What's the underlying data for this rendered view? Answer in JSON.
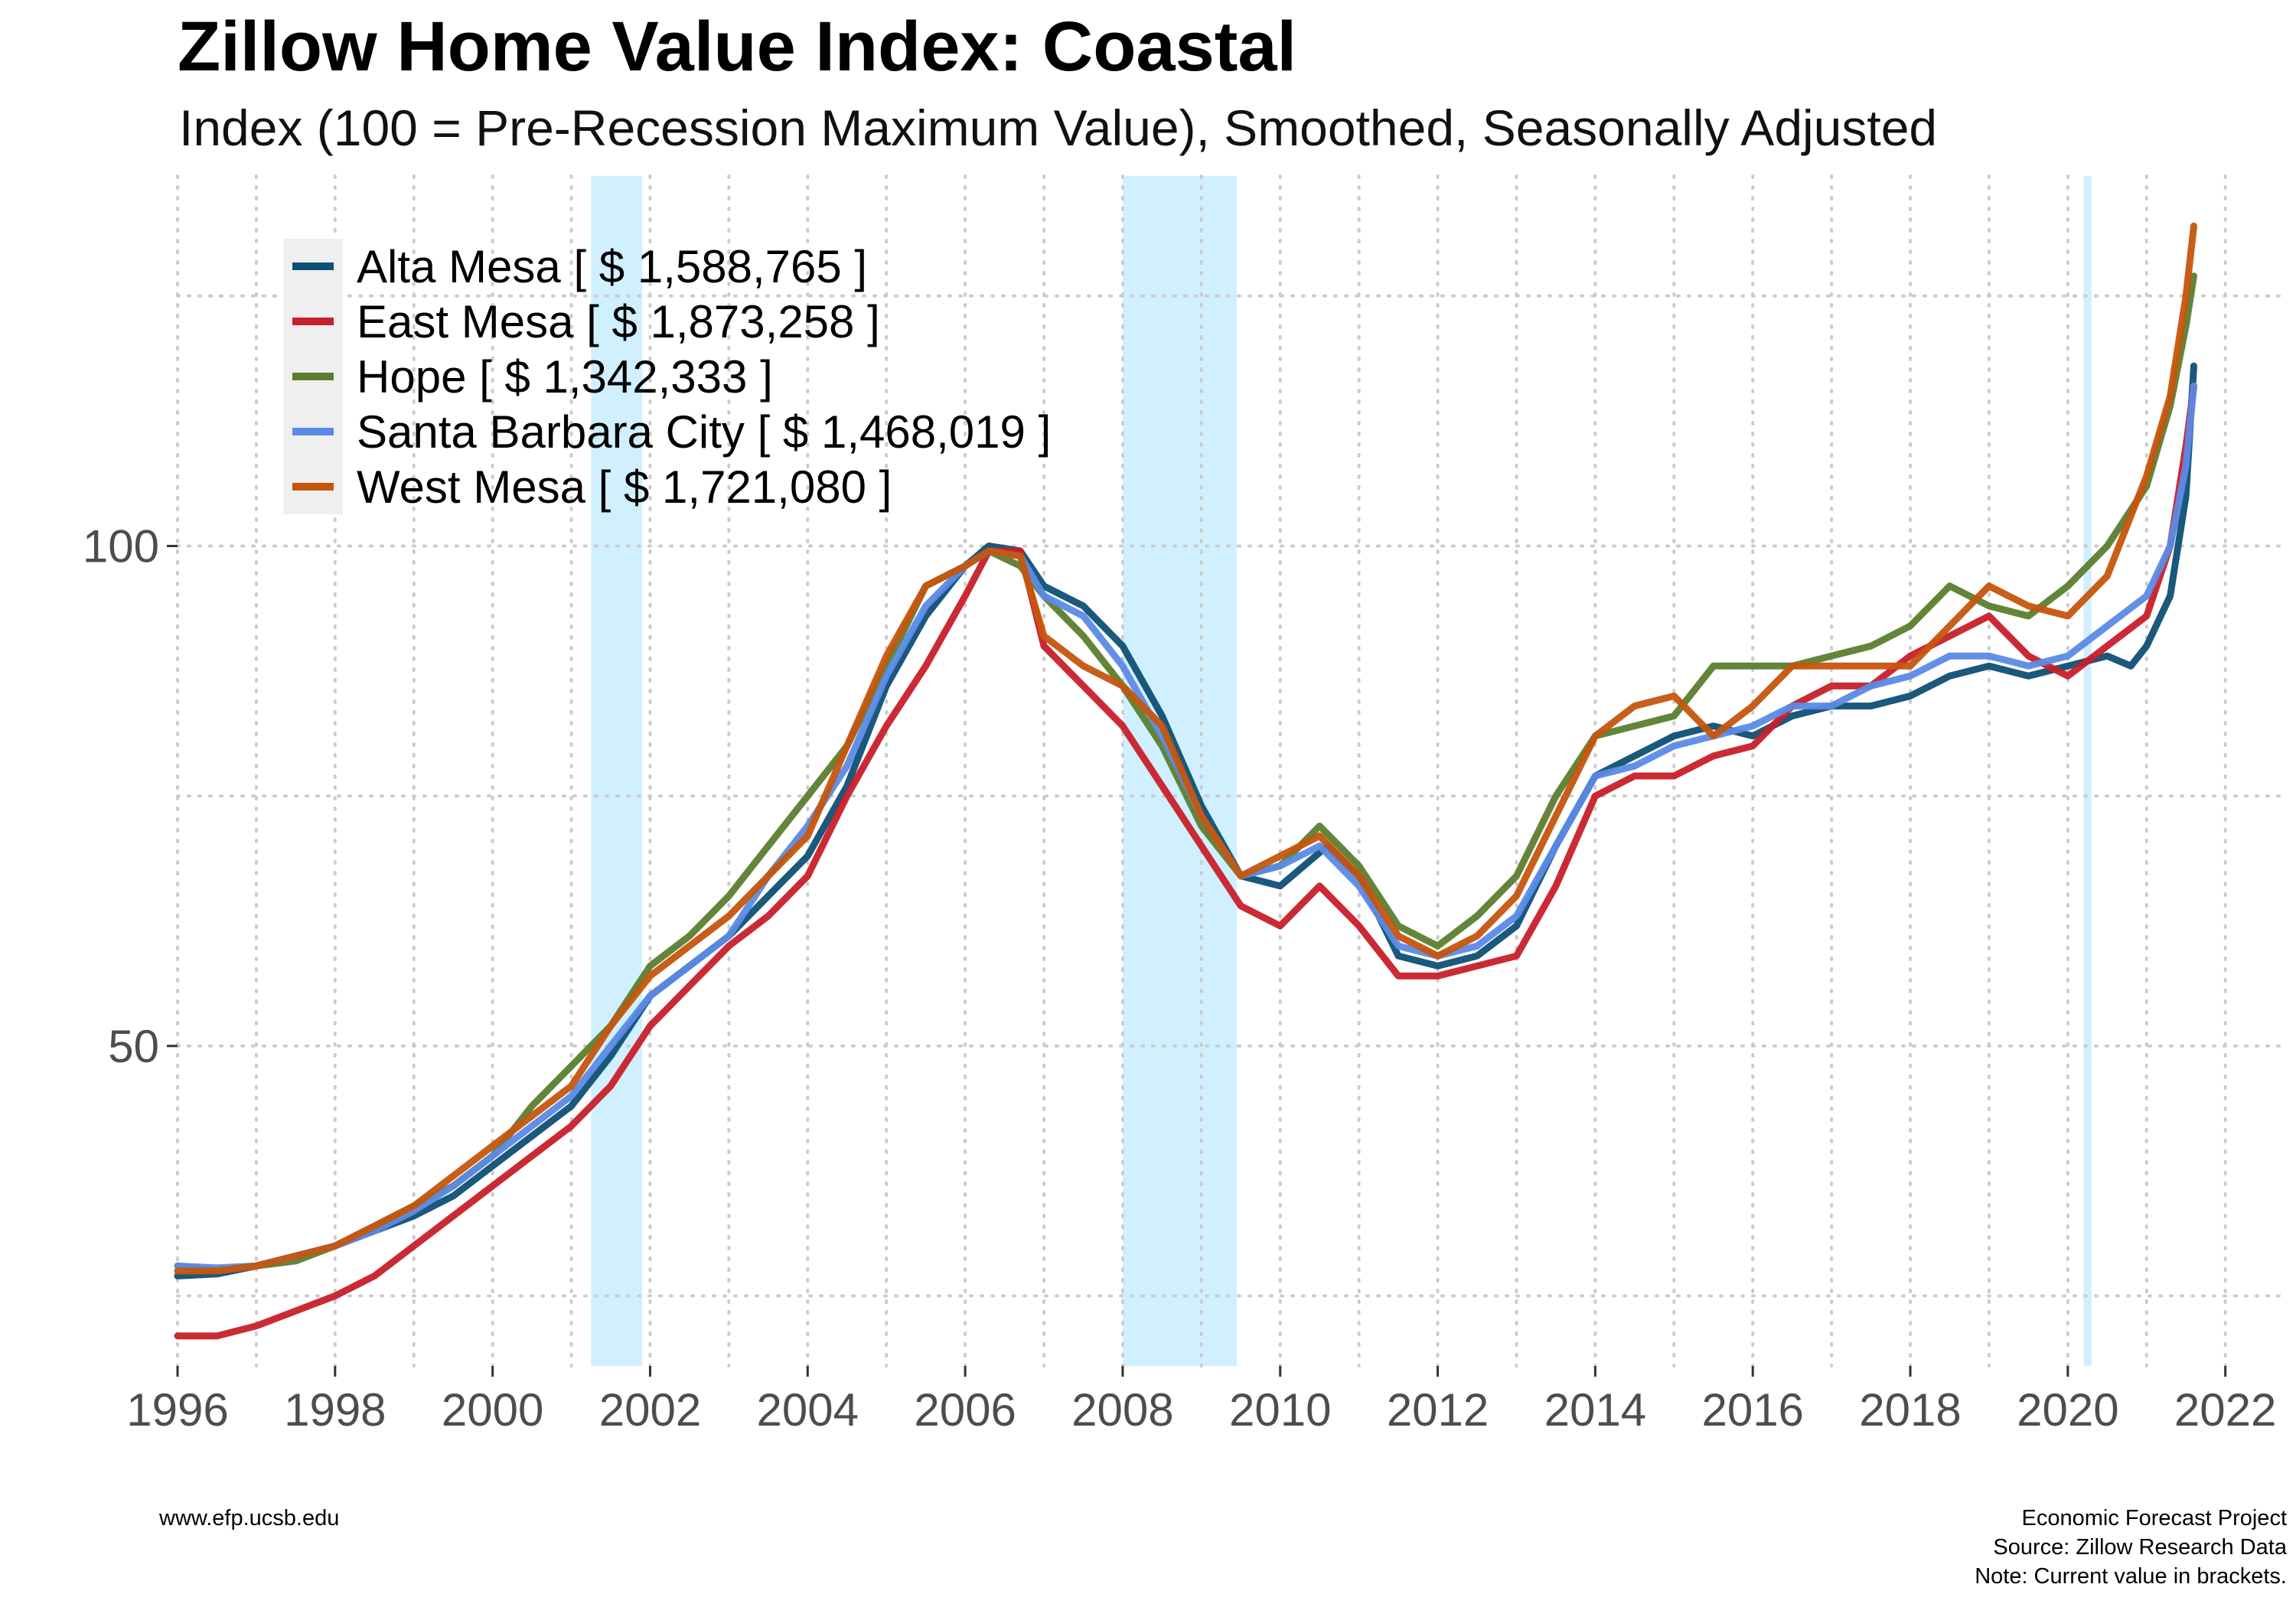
{
  "chart_data": {
    "type": "line",
    "title": "Zillow Home Value Index: Coastal",
    "subtitle": "Index (100 = Pre-Recession Maximum Value), Smoothed, Seasonally Adjusted",
    "xlim": [
      1996,
      2022.8
    ],
    "ylim": [
      18,
      137
    ],
    "x_ticks": [
      "1996",
      "1998",
      "2000",
      "2002",
      "2004",
      "2006",
      "2008",
      "2010",
      "2012",
      "2014",
      "2016",
      "2018",
      "2020",
      "2022"
    ],
    "y_ticks": [
      "50",
      "100"
    ],
    "grid": "dotted",
    "legend_position": "top-left",
    "recessions": [
      {
        "start": 2001.25,
        "end": 2001.9
      },
      {
        "start": 2008.0,
        "end": 2009.45
      },
      {
        "start": 2020.2,
        "end": 2020.3
      }
    ],
    "series": [
      {
        "name": "Alta Mesa",
        "label": "Alta Mesa [ $ 1,588,765 ]",
        "color": "#0e4f75",
        "points": [
          [
            1996,
            27
          ],
          [
            1996.5,
            27.2
          ],
          [
            1997,
            28
          ],
          [
            1997.5,
            29
          ],
          [
            1998,
            30
          ],
          [
            1998.5,
            31.5
          ],
          [
            1999,
            33
          ],
          [
            1999.5,
            35
          ],
          [
            2000,
            38
          ],
          [
            2000.5,
            41
          ],
          [
            2001,
            44
          ],
          [
            2001.5,
            49
          ],
          [
            2002,
            55
          ],
          [
            2002.5,
            58
          ],
          [
            2003,
            61
          ],
          [
            2003.5,
            65
          ],
          [
            2004,
            69
          ],
          [
            2004.5,
            76
          ],
          [
            2005,
            86
          ],
          [
            2005.5,
            93
          ],
          [
            2006,
            98
          ],
          [
            2006.3,
            100
          ],
          [
            2006.7,
            99.5
          ],
          [
            2007,
            96
          ],
          [
            2007.5,
            94
          ],
          [
            2008,
            90
          ],
          [
            2008.5,
            83
          ],
          [
            2009,
            74
          ],
          [
            2009.5,
            67
          ],
          [
            2010,
            66
          ],
          [
            2010.3,
            68
          ],
          [
            2010.6,
            70
          ],
          [
            2011,
            67
          ],
          [
            2011.5,
            59
          ],
          [
            2012,
            58
          ],
          [
            2012.5,
            59
          ],
          [
            2013,
            62
          ],
          [
            2013.5,
            70
          ],
          [
            2014,
            77
          ],
          [
            2014.5,
            79
          ],
          [
            2015,
            81
          ],
          [
            2015.5,
            82
          ],
          [
            2016,
            81
          ],
          [
            2016.5,
            83
          ],
          [
            2017,
            84
          ],
          [
            2017.5,
            84
          ],
          [
            2018,
            85
          ],
          [
            2018.5,
            87
          ],
          [
            2019,
            88
          ],
          [
            2019.5,
            87
          ],
          [
            2020,
            88
          ],
          [
            2020.5,
            89
          ],
          [
            2020.8,
            88
          ],
          [
            2021,
            90
          ],
          [
            2021.3,
            95
          ],
          [
            2021.5,
            105
          ],
          [
            2021.6,
            118
          ]
        ]
      },
      {
        "name": "East Mesa",
        "label": "East Mesa [ $ 1,873,258 ]",
        "color": "#c81f2a",
        "points": [
          [
            1996,
            21
          ],
          [
            1996.5,
            21
          ],
          [
            1997,
            22
          ],
          [
            1997.5,
            23.5
          ],
          [
            1998,
            25
          ],
          [
            1998.5,
            27
          ],
          [
            1999,
            30
          ],
          [
            1999.5,
            33
          ],
          [
            2000,
            36
          ],
          [
            2000.5,
            39
          ],
          [
            2001,
            42
          ],
          [
            2001.5,
            46
          ],
          [
            2002,
            52
          ],
          [
            2002.5,
            56
          ],
          [
            2003,
            60
          ],
          [
            2003.5,
            63
          ],
          [
            2004,
            67
          ],
          [
            2004.5,
            75
          ],
          [
            2005,
            82
          ],
          [
            2005.5,
            88
          ],
          [
            2006,
            95
          ],
          [
            2006.3,
            99.5
          ],
          [
            2006.7,
            99.5
          ],
          [
            2007,
            90
          ],
          [
            2007.5,
            86
          ],
          [
            2008,
            82
          ],
          [
            2008.5,
            76
          ],
          [
            2009,
            70
          ],
          [
            2009.5,
            64
          ],
          [
            2010,
            62
          ],
          [
            2010.5,
            66
          ],
          [
            2011,
            62
          ],
          [
            2011.5,
            57
          ],
          [
            2012,
            57
          ],
          [
            2012.5,
            58
          ],
          [
            2013,
            59
          ],
          [
            2013.5,
            66
          ],
          [
            2014,
            75
          ],
          [
            2014.5,
            77
          ],
          [
            2015,
            77
          ],
          [
            2015.5,
            79
          ],
          [
            2016,
            80
          ],
          [
            2016.5,
            84
          ],
          [
            2017,
            86
          ],
          [
            2017.5,
            86
          ],
          [
            2018,
            89
          ],
          [
            2018.5,
            91
          ],
          [
            2019,
            93
          ],
          [
            2019.5,
            89
          ],
          [
            2020,
            87
          ],
          [
            2020.5,
            90
          ],
          [
            2021,
            93
          ],
          [
            2021.3,
            100
          ],
          [
            2021.5,
            110
          ],
          [
            2021.6,
            116
          ]
        ]
      },
      {
        "name": "Hope",
        "label": "Hope [ $ 1,342,333 ]",
        "color": "#5b7e2e",
        "points": [
          [
            1996,
            28
          ],
          [
            1996.5,
            27.5
          ],
          [
            1997,
            28
          ],
          [
            1997.5,
            28.5
          ],
          [
            1998,
            30
          ],
          [
            1998.5,
            32
          ],
          [
            1999,
            34
          ],
          [
            1999.5,
            36
          ],
          [
            2000,
            39
          ],
          [
            2000.5,
            44
          ],
          [
            2001,
            48
          ],
          [
            2001.5,
            52
          ],
          [
            2002,
            58
          ],
          [
            2002.5,
            61
          ],
          [
            2003,
            65
          ],
          [
            2003.5,
            70
          ],
          [
            2004,
            75
          ],
          [
            2004.5,
            80
          ],
          [
            2005,
            88
          ],
          [
            2005.5,
            96
          ],
          [
            2006,
            98
          ],
          [
            2006.3,
            99.5
          ],
          [
            2006.7,
            98
          ],
          [
            2007,
            95
          ],
          [
            2007.5,
            91
          ],
          [
            2008,
            86
          ],
          [
            2008.5,
            80
          ],
          [
            2009,
            72
          ],
          [
            2009.5,
            67
          ],
          [
            2010,
            68
          ],
          [
            2010.5,
            72
          ],
          [
            2011,
            68
          ],
          [
            2011.5,
            62
          ],
          [
            2012,
            60
          ],
          [
            2012.5,
            63
          ],
          [
            2013,
            67
          ],
          [
            2013.5,
            75
          ],
          [
            2014,
            81
          ],
          [
            2014.5,
            82
          ],
          [
            2015,
            83
          ],
          [
            2015.5,
            88
          ],
          [
            2016,
            88
          ],
          [
            2016.5,
            88
          ],
          [
            2017,
            89
          ],
          [
            2017.5,
            90
          ],
          [
            2018,
            92
          ],
          [
            2018.5,
            96
          ],
          [
            2019,
            94
          ],
          [
            2019.5,
            93
          ],
          [
            2020,
            96
          ],
          [
            2020.5,
            100
          ],
          [
            2021,
            106
          ],
          [
            2021.3,
            114
          ],
          [
            2021.5,
            122
          ],
          [
            2021.6,
            127
          ]
        ]
      },
      {
        "name": "Santa Barbara City",
        "label": "Santa Barbara City [ $ 1,468,019 ]",
        "color": "#5b8ae6",
        "points": [
          [
            1996,
            28
          ],
          [
            1996.5,
            27.8
          ],
          [
            1997,
            28
          ],
          [
            1997.5,
            29
          ],
          [
            1998,
            30
          ],
          [
            1998.5,
            31.5
          ],
          [
            1999,
            33.5
          ],
          [
            1999.5,
            36
          ],
          [
            2000,
            39
          ],
          [
            2000.5,
            42
          ],
          [
            2001,
            45
          ],
          [
            2001.5,
            50
          ],
          [
            2002,
            55
          ],
          [
            2002.5,
            58
          ],
          [
            2003,
            61
          ],
          [
            2003.5,
            67
          ],
          [
            2004,
            72
          ],
          [
            2004.5,
            78
          ],
          [
            2005,
            87
          ],
          [
            2005.5,
            94
          ],
          [
            2006,
            98
          ],
          [
            2006.3,
            99.5
          ],
          [
            2006.7,
            99
          ],
          [
            2007,
            95
          ],
          [
            2007.5,
            93
          ],
          [
            2008,
            88
          ],
          [
            2008.5,
            81
          ],
          [
            2009,
            73
          ],
          [
            2009.5,
            67
          ],
          [
            2010,
            68
          ],
          [
            2010.5,
            70
          ],
          [
            2011,
            66
          ],
          [
            2011.5,
            60
          ],
          [
            2012,
            59
          ],
          [
            2012.5,
            60
          ],
          [
            2013,
            63
          ],
          [
            2013.5,
            70
          ],
          [
            2014,
            77
          ],
          [
            2014.5,
            78
          ],
          [
            2015,
            80
          ],
          [
            2015.5,
            81
          ],
          [
            2016,
            82
          ],
          [
            2016.5,
            84
          ],
          [
            2017,
            84
          ],
          [
            2017.5,
            86
          ],
          [
            2018,
            87
          ],
          [
            2018.5,
            89
          ],
          [
            2019,
            89
          ],
          [
            2019.5,
            88
          ],
          [
            2020,
            89
          ],
          [
            2020.5,
            92
          ],
          [
            2021,
            95
          ],
          [
            2021.3,
            100
          ],
          [
            2021.5,
            108
          ],
          [
            2021.6,
            116
          ]
        ]
      },
      {
        "name": "West Mesa",
        "label": "West Mesa [ $ 1,721,080 ]",
        "color": "#c5550d",
        "points": [
          [
            1996,
            27.5
          ],
          [
            1996.5,
            27.5
          ],
          [
            1997,
            28
          ],
          [
            1997.5,
            29
          ],
          [
            1998,
            30
          ],
          [
            1998.5,
            32
          ],
          [
            1999,
            34
          ],
          [
            1999.5,
            37
          ],
          [
            2000,
            40
          ],
          [
            2000.5,
            43
          ],
          [
            2001,
            46
          ],
          [
            2001.5,
            52
          ],
          [
            2002,
            57
          ],
          [
            2002.5,
            60
          ],
          [
            2003,
            63
          ],
          [
            2003.5,
            67
          ],
          [
            2004,
            71
          ],
          [
            2004.5,
            80
          ],
          [
            2005,
            89
          ],
          [
            2005.5,
            96
          ],
          [
            2006,
            98
          ],
          [
            2006.3,
            99.5
          ],
          [
            2006.7,
            99
          ],
          [
            2007,
            91
          ],
          [
            2007.5,
            88
          ],
          [
            2008,
            86
          ],
          [
            2008.5,
            82
          ],
          [
            2009,
            73
          ],
          [
            2009.5,
            67
          ],
          [
            2010,
            69
          ],
          [
            2010.5,
            71
          ],
          [
            2011,
            67
          ],
          [
            2011.5,
            61
          ],
          [
            2012,
            59
          ],
          [
            2012.5,
            61
          ],
          [
            2013,
            65
          ],
          [
            2013.5,
            73
          ],
          [
            2014,
            81
          ],
          [
            2014.5,
            84
          ],
          [
            2015,
            85
          ],
          [
            2015.5,
            81
          ],
          [
            2016,
            84
          ],
          [
            2016.5,
            88
          ],
          [
            2017,
            88
          ],
          [
            2017.5,
            88
          ],
          [
            2018,
            88
          ],
          [
            2018.5,
            92
          ],
          [
            2019,
            96
          ],
          [
            2019.5,
            94
          ],
          [
            2020,
            93
          ],
          [
            2020.5,
            97
          ],
          [
            2021,
            107
          ],
          [
            2021.3,
            115
          ],
          [
            2021.5,
            125
          ],
          [
            2021.6,
            132
          ]
        ]
      }
    ]
  },
  "footer": {
    "left": "www.efp.ucsb.edu",
    "right": [
      "Economic Forecast Project",
      "Source: Zillow Research Data",
      "Note: Current value in brackets."
    ]
  }
}
